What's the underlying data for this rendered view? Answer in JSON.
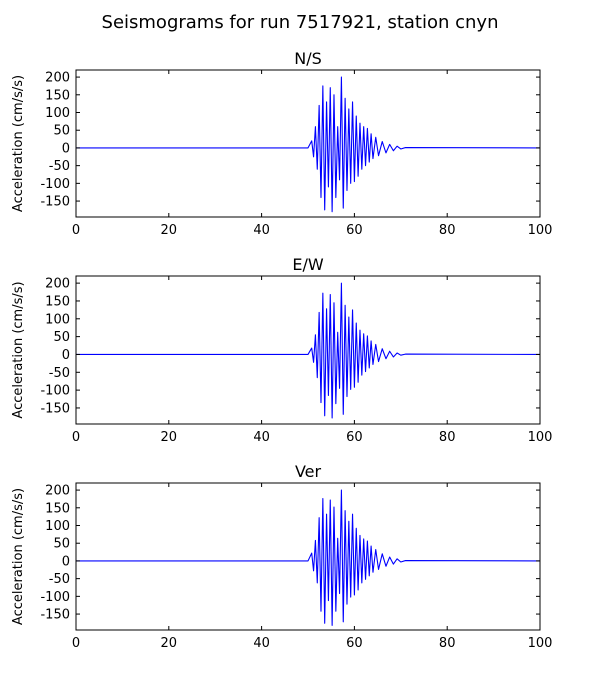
{
  "figure": {
    "title": "Seismograms for run 7517921, station cnyn"
  },
  "chart_data": [
    {
      "type": "line",
      "title": "N/S",
      "xlabel": "",
      "ylabel": "Acceleration (cm/s/s)",
      "xlim": [
        0,
        100
      ],
      "ylim": [
        -195,
        220
      ],
      "xticks": [
        0,
        20,
        40,
        60,
        80,
        100
      ],
      "yticks": [
        -150,
        -100,
        -50,
        0,
        50,
        100,
        150,
        200
      ],
      "grid": false,
      "color": "#0000ff",
      "series": [
        {
          "x": [
            0,
            50,
            50.8,
            51.2,
            51.6,
            52.0,
            52.4,
            52.8,
            53.2,
            53.6,
            54.0,
            54.4,
            54.8,
            55.2,
            55.6,
            56.0,
            56.4,
            56.8,
            57.2,
            57.6,
            58.0,
            58.4,
            58.8,
            59.2,
            59.6,
            60.0,
            60.4,
            60.8,
            61.2,
            61.6,
            62.0,
            62.4,
            62.8,
            63.2,
            63.6,
            64.0,
            64.6,
            65.2,
            66.0,
            66.8,
            67.6,
            68.4,
            69.2,
            70.0,
            71.0,
            100
          ],
          "y": [
            0,
            0,
            20,
            -25,
            60,
            -60,
            120,
            -140,
            175,
            -175,
            130,
            -110,
            170,
            -180,
            150,
            -140,
            60,
            -90,
            200,
            -170,
            140,
            -120,
            110,
            -100,
            130,
            -95,
            90,
            -80,
            70,
            -60,
            60,
            -50,
            55,
            -40,
            40,
            -30,
            30,
            -22,
            18,
            -14,
            10,
            -8,
            5,
            -3,
            1,
            0
          ]
        }
      ]
    },
    {
      "type": "line",
      "title": "E/W",
      "xlabel": "",
      "ylabel": "Acceleration (cm/s/s)",
      "xlim": [
        0,
        100
      ],
      "ylim": [
        -195,
        220
      ],
      "xticks": [
        0,
        20,
        40,
        60,
        80,
        100
      ],
      "yticks": [
        -150,
        -100,
        -50,
        0,
        50,
        100,
        150,
        200
      ],
      "grid": false,
      "color": "#0000ff",
      "series": [
        {
          "x": [
            0,
            50,
            50.8,
            51.2,
            51.6,
            52.0,
            52.4,
            52.8,
            53.2,
            53.6,
            54.0,
            54.4,
            54.8,
            55.2,
            55.6,
            56.0,
            56.4,
            56.8,
            57.2,
            57.6,
            58.0,
            58.4,
            58.8,
            59.2,
            59.6,
            60.0,
            60.4,
            60.8,
            61.2,
            61.6,
            62.0,
            62.4,
            62.8,
            63.2,
            63.6,
            64.0,
            64.6,
            65.2,
            66.0,
            66.8,
            67.6,
            68.4,
            69.2,
            70.0,
            71.0,
            100
          ],
          "y": [
            0,
            0,
            18,
            -22,
            55,
            -65,
            118,
            -135,
            172,
            -172,
            128,
            -115,
            168,
            -178,
            145,
            -138,
            62,
            -95,
            200,
            -168,
            138,
            -118,
            105,
            -98,
            125,
            -92,
            88,
            -78,
            68,
            -58,
            58,
            -48,
            52,
            -38,
            38,
            -28,
            28,
            -20,
            16,
            -12,
            9,
            -7,
            4,
            -2,
            1,
            0
          ]
        }
      ]
    },
    {
      "type": "line",
      "title": "Ver",
      "xlabel": "",
      "ylabel": "Acceleration (cm/s/s)",
      "xlim": [
        0,
        100
      ],
      "ylim": [
        -195,
        220
      ],
      "xticks": [
        0,
        20,
        40,
        60,
        80,
        100
      ],
      "yticks": [
        -150,
        -100,
        -50,
        0,
        50,
        100,
        150,
        200
      ],
      "grid": false,
      "color": "#0000ff",
      "series": [
        {
          "x": [
            0,
            50,
            50.8,
            51.2,
            51.6,
            52.0,
            52.4,
            52.8,
            53.2,
            53.6,
            54.0,
            54.4,
            54.8,
            55.2,
            55.6,
            56.0,
            56.4,
            56.8,
            57.2,
            57.6,
            58.0,
            58.4,
            58.8,
            59.2,
            59.6,
            60.0,
            60.4,
            60.8,
            61.2,
            61.6,
            62.0,
            62.4,
            62.8,
            63.2,
            63.6,
            64.0,
            64.6,
            65.2,
            66.0,
            66.8,
            67.6,
            68.4,
            69.2,
            70.0,
            71.0,
            100
          ],
          "y": [
            0,
            0,
            22,
            -28,
            58,
            -62,
            122,
            -142,
            176,
            -176,
            132,
            -112,
            172,
            -182,
            152,
            -142,
            64,
            -92,
            200,
            -172,
            142,
            -122,
            112,
            -102,
            132,
            -96,
            92,
            -82,
            72,
            -62,
            62,
            -52,
            56,
            -42,
            42,
            -32,
            32,
            -24,
            20,
            -15,
            11,
            -9,
            6,
            -3,
            1,
            0
          ]
        }
      ]
    }
  ]
}
